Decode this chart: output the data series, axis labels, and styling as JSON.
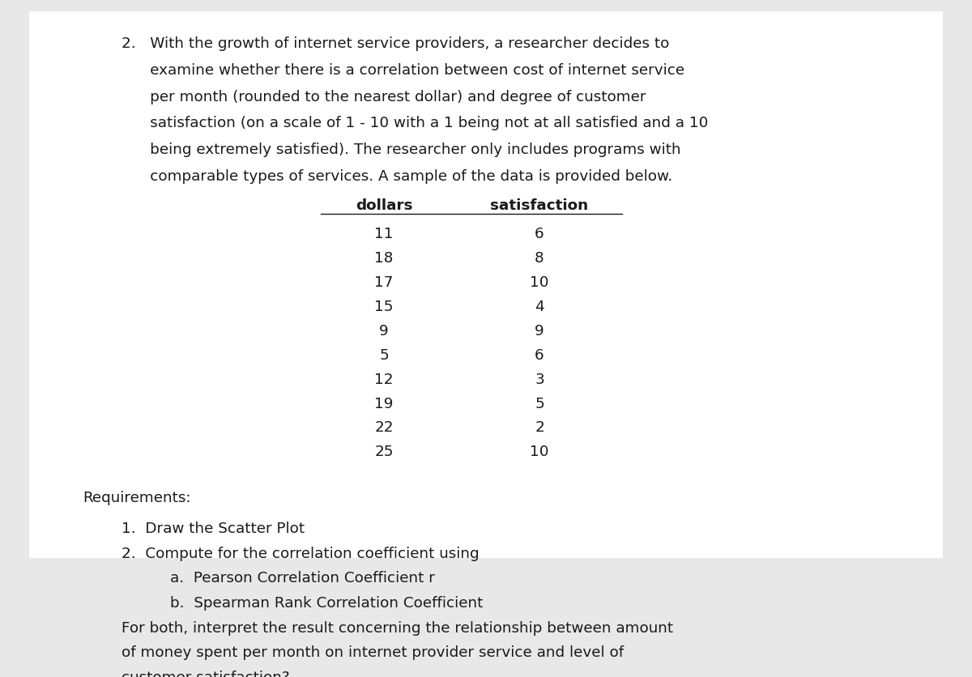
{
  "background_color": "#e8e8e8",
  "page_background": "#ffffff",
  "col1_header": "dollars",
  "col2_header": "satisfaction",
  "data_rows": [
    [
      11,
      6
    ],
    [
      18,
      8
    ],
    [
      17,
      10
    ],
    [
      15,
      4
    ],
    [
      9,
      9
    ],
    [
      5,
      6
    ],
    [
      12,
      3
    ],
    [
      19,
      5
    ],
    [
      22,
      2
    ],
    [
      25,
      10
    ]
  ],
  "requirements_label": "Requirements:",
  "req1": "1.  Draw the Scatter Plot",
  "req2": "2.  Compute for the correlation coefficient using",
  "req2a": "a.  Pearson Correlation Coefficient r",
  "req2b": "b.  Spearman Rank Correlation Coefficient",
  "req3a": "For both, interpret the result concerning the relationship between amount",
  "req3b": "of money spent per month on internet provider service and level of",
  "req3c": "customer satisfaction?",
  "font_size_body": 13.2,
  "font_size_header": 13.2,
  "text_color": "#1a1a1a"
}
